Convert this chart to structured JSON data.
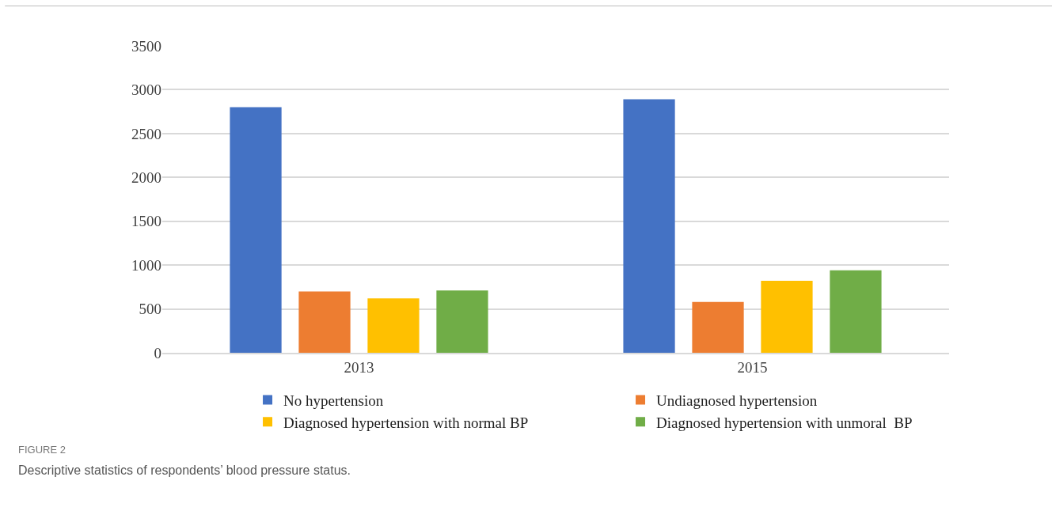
{
  "chart_data": {
    "type": "bar",
    "categories": [
      "2013",
      "2015"
    ],
    "series": [
      {
        "name": "No hypertension",
        "color": "#4472c4",
        "values": [
          2800,
          2890
        ]
      },
      {
        "name": "Undiagnosed hypertension",
        "color": "#ed7d31",
        "values": [
          700,
          580
        ]
      },
      {
        "name": "Diagnosed hypertension with normal BP",
        "color": "#ffc000",
        "values": [
          620,
          820
        ]
      },
      {
        "name": "Diagnosed hypertension with unmoral  BP",
        "color": "#70ad47",
        "values": [
          710,
          940
        ]
      }
    ],
    "ylim": [
      0,
      3500
    ],
    "yticks": [
      0,
      500,
      1000,
      1500,
      2000,
      2500,
      3000,
      3500
    ],
    "grid": "y",
    "legend": "bottom",
    "annotations": [
      "FIGURE 2",
      "Descriptive statistics of respondents’ blood pressure status."
    ]
  }
}
